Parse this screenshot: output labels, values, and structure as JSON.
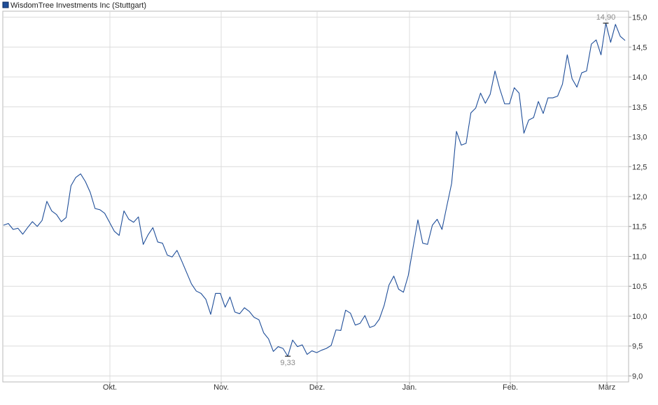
{
  "chart_data": {
    "type": "line",
    "legend": {
      "label": "WisdomTree Investments Inc (Stuttgart)",
      "position": "top-left",
      "color": "#1f4e99"
    },
    "x_ticks": [
      "Okt.",
      "Nov.",
      "Dez.",
      "Jan.",
      "Feb.",
      "März"
    ],
    "y_ticks": [
      "9,0",
      "9,5",
      "10,0",
      "10,5",
      "11,0",
      "11,5",
      "12,0",
      "12,5",
      "13,0",
      "13,5",
      "14,0",
      "14,5",
      "15,0"
    ],
    "ylim": [
      8.9,
      15.1
    ],
    "grid": true,
    "series": [
      {
        "color": "#1f4e99",
        "values": [
          11.52,
          11.55,
          11.45,
          11.47,
          11.37,
          11.48,
          11.58,
          11.5,
          11.6,
          11.92,
          11.76,
          11.7,
          11.58,
          11.65,
          12.18,
          12.32,
          12.38,
          12.25,
          12.07,
          11.8,
          11.78,
          11.72,
          11.57,
          11.42,
          11.35,
          11.76,
          11.62,
          11.57,
          11.66,
          11.2,
          11.36,
          11.48,
          11.24,
          11.22,
          11.02,
          10.99,
          11.1,
          10.92,
          10.73,
          10.54,
          10.42,
          10.38,
          10.28,
          10.03,
          10.38,
          10.38,
          10.15,
          10.32,
          10.07,
          10.04,
          10.14,
          10.08,
          9.98,
          9.94,
          9.72,
          9.62,
          9.41,
          9.49,
          9.46,
          9.33,
          9.6,
          9.49,
          9.52,
          9.36,
          9.42,
          9.39,
          9.43,
          9.46,
          9.51,
          9.77,
          9.76,
          10.1,
          10.05,
          9.85,
          9.88,
          10.01,
          9.81,
          9.84,
          9.95,
          10.18,
          10.52,
          10.67,
          10.45,
          10.4,
          10.68,
          11.15,
          11.61,
          11.22,
          11.2,
          11.52,
          11.62,
          11.45,
          11.84,
          12.22,
          13.09,
          12.86,
          12.89,
          13.4,
          13.48,
          13.73,
          13.56,
          13.71,
          14.1,
          13.8,
          13.55,
          13.55,
          13.82,
          13.73,
          13.06,
          13.28,
          13.32,
          13.59,
          13.39,
          13.65,
          13.65,
          13.68,
          13.88,
          14.37,
          13.97,
          13.83,
          14.07,
          14.1,
          14.55,
          14.62,
          14.37,
          14.9,
          14.58,
          14.88,
          14.68,
          14.61
        ]
      }
    ],
    "annotations": [
      {
        "text": "14,90",
        "type": "max",
        "value": 14.9
      },
      {
        "text": "9,33",
        "type": "min",
        "value": 9.33
      }
    ]
  }
}
